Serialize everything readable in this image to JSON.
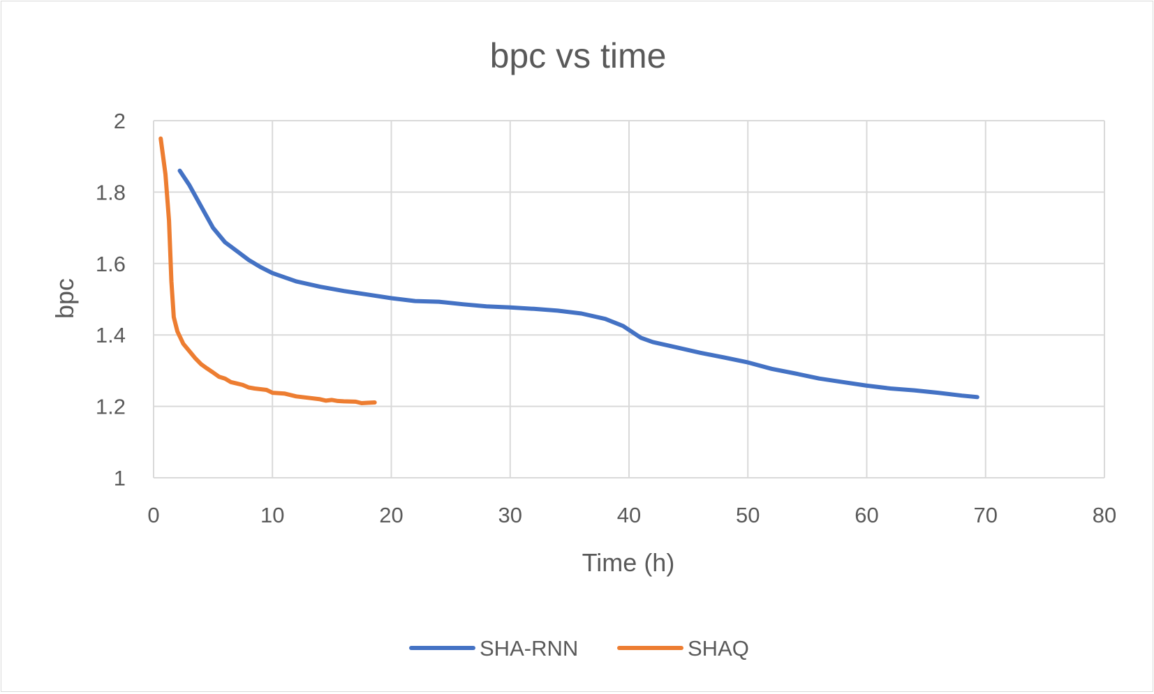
{
  "chart_data": {
    "type": "line",
    "title": "bpc vs time",
    "xlabel": "Time (h)",
    "ylabel": "bpc",
    "xlim": [
      0,
      80
    ],
    "ylim": [
      1,
      2
    ],
    "x_ticks": [
      0,
      10,
      20,
      30,
      40,
      50,
      60,
      70,
      80
    ],
    "y_ticks": [
      1,
      1.2,
      1.4,
      1.6,
      1.8,
      2
    ],
    "x_tick_labels": [
      "0",
      "10",
      "20",
      "30",
      "40",
      "50",
      "60",
      "70",
      "80"
    ],
    "y_tick_labels": [
      "1",
      "1.2",
      "1.4",
      "1.6",
      "1.8",
      "2"
    ],
    "grid": true,
    "legend_position": "bottom",
    "series": [
      {
        "name": "SHA-RNN",
        "color": "#4472c4",
        "points": [
          [
            2.2,
            1.86
          ],
          [
            3,
            1.82
          ],
          [
            4,
            1.76
          ],
          [
            5,
            1.7
          ],
          [
            6,
            1.66
          ],
          [
            7,
            1.635
          ],
          [
            8,
            1.61
          ],
          [
            9,
            1.59
          ],
          [
            10,
            1.573
          ],
          [
            12,
            1.55
          ],
          [
            14,
            1.535
          ],
          [
            16,
            1.523
          ],
          [
            18,
            1.513
          ],
          [
            20,
            1.503
          ],
          [
            22,
            1.495
          ],
          [
            24,
            1.493
          ],
          [
            26,
            1.486
          ],
          [
            28,
            1.48
          ],
          [
            30,
            1.477
          ],
          [
            32,
            1.473
          ],
          [
            34,
            1.468
          ],
          [
            36,
            1.46
          ],
          [
            38,
            1.445
          ],
          [
            39.5,
            1.425
          ],
          [
            41,
            1.392
          ],
          [
            42,
            1.38
          ],
          [
            44,
            1.365
          ],
          [
            46,
            1.35
          ],
          [
            48,
            1.337
          ],
          [
            50,
            1.323
          ],
          [
            52,
            1.305
          ],
          [
            54,
            1.292
          ],
          [
            56,
            1.278
          ],
          [
            58,
            1.268
          ],
          [
            60,
            1.258
          ],
          [
            62,
            1.25
          ],
          [
            64,
            1.245
          ],
          [
            66,
            1.238
          ],
          [
            68,
            1.23
          ],
          [
            69.3,
            1.226
          ]
        ]
      },
      {
        "name": "SHAQ",
        "color": "#ed7d31",
        "points": [
          [
            0.6,
            1.95
          ],
          [
            1.0,
            1.85
          ],
          [
            1.3,
            1.72
          ],
          [
            1.5,
            1.55
          ],
          [
            1.7,
            1.45
          ],
          [
            2.0,
            1.41
          ],
          [
            2.5,
            1.375
          ],
          [
            3.0,
            1.355
          ],
          [
            3.5,
            1.335
          ],
          [
            4.0,
            1.318
          ],
          [
            4.5,
            1.306
          ],
          [
            5.0,
            1.295
          ],
          [
            5.5,
            1.283
          ],
          [
            6.0,
            1.278
          ],
          [
            6.5,
            1.268
          ],
          [
            7.0,
            1.264
          ],
          [
            7.5,
            1.26
          ],
          [
            8.0,
            1.253
          ],
          [
            8.5,
            1.25
          ],
          [
            9.0,
            1.248
          ],
          [
            9.5,
            1.246
          ],
          [
            10.0,
            1.238
          ],
          [
            11,
            1.236
          ],
          [
            12,
            1.228
          ],
          [
            13,
            1.224
          ],
          [
            14,
            1.22
          ],
          [
            14.5,
            1.216
          ],
          [
            15,
            1.218
          ],
          [
            15.5,
            1.215
          ],
          [
            16,
            1.214
          ],
          [
            17,
            1.213
          ],
          [
            17.5,
            1.209
          ],
          [
            18,
            1.21
          ],
          [
            18.6,
            1.211
          ]
        ]
      }
    ]
  }
}
